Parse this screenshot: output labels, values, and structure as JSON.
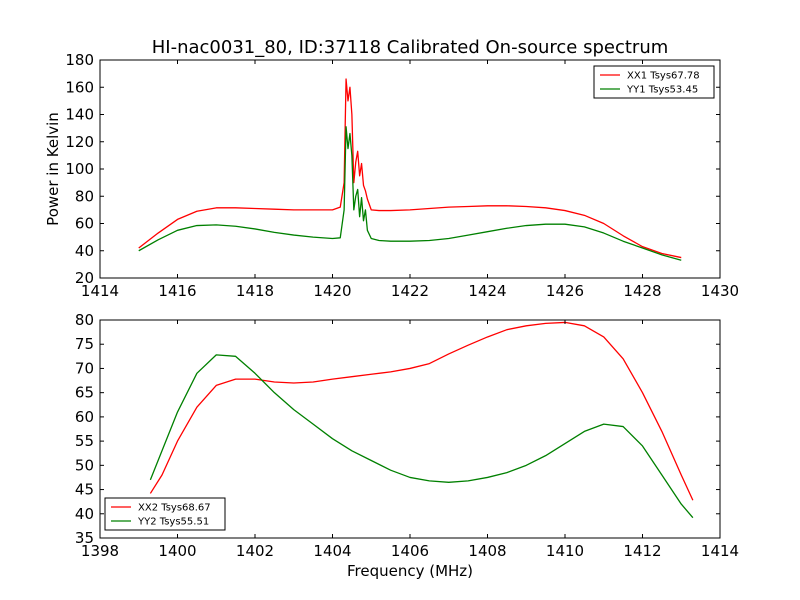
{
  "figure": {
    "title": "HI-nac0031_80, ID:37118 Calibrated On-source spectrum"
  },
  "chart_data": [
    {
      "type": "line",
      "title": "HI-nac0031_80, ID:37118 Calibrated On-source spectrum",
      "xlabel": "",
      "ylabel": "Power in Kelvin",
      "xlim": [
        1414,
        1430
      ],
      "ylim": [
        20,
        180
      ],
      "xticks": [
        1414,
        1416,
        1418,
        1420,
        1422,
        1424,
        1426,
        1428,
        1430
      ],
      "yticks": [
        20,
        40,
        60,
        80,
        100,
        120,
        140,
        160,
        180
      ],
      "grid": false,
      "legend_position": "top-right",
      "series": [
        {
          "name": "XX1 Tsys67.78",
          "color": "#ff0000",
          "x": [
            1415.0,
            1415.5,
            1416.0,
            1416.5,
            1417.0,
            1417.5,
            1418.0,
            1418.5,
            1419.0,
            1419.5,
            1420.0,
            1420.2,
            1420.3,
            1420.35,
            1420.4,
            1420.45,
            1420.5,
            1420.55,
            1420.6,
            1420.65,
            1420.7,
            1420.75,
            1420.8,
            1420.85,
            1420.9,
            1421.0,
            1421.2,
            1421.5,
            1422.0,
            1422.5,
            1423.0,
            1423.5,
            1424.0,
            1424.5,
            1425.0,
            1425.5,
            1426.0,
            1426.5,
            1427.0,
            1427.5,
            1428.0,
            1428.5,
            1429.0
          ],
          "values": [
            42,
            53,
            63,
            69,
            71.5,
            71.5,
            71,
            70.5,
            70,
            70,
            70,
            72,
            90,
            166,
            150,
            160,
            140,
            90,
            105,
            113,
            95,
            104,
            88,
            84,
            78,
            70,
            69.5,
            69.5,
            70,
            71,
            72,
            72.5,
            73,
            73,
            72.5,
            71.5,
            69.5,
            66,
            60,
            51,
            43,
            38,
            35
          ]
        },
        {
          "name": "YY1 Tsys53.45",
          "color": "#008000",
          "x": [
            1415.0,
            1415.5,
            1416.0,
            1416.5,
            1417.0,
            1417.5,
            1418.0,
            1418.5,
            1419.0,
            1419.5,
            1420.0,
            1420.2,
            1420.3,
            1420.35,
            1420.4,
            1420.45,
            1420.5,
            1420.55,
            1420.6,
            1420.65,
            1420.7,
            1420.75,
            1420.8,
            1420.85,
            1420.9,
            1421.0,
            1421.2,
            1421.5,
            1422.0,
            1422.5,
            1423.0,
            1423.5,
            1424.0,
            1424.5,
            1425.0,
            1425.5,
            1426.0,
            1426.5,
            1427.0,
            1427.5,
            1428.0,
            1428.5,
            1429.0
          ],
          "values": [
            40,
            48,
            55,
            58.5,
            59,
            58,
            56,
            53.5,
            51.5,
            50,
            49,
            49.5,
            70,
            131,
            115,
            126,
            110,
            70,
            80,
            85,
            65,
            79,
            62,
            70,
            55,
            49,
            47.5,
            47,
            47,
            47.5,
            49,
            51.5,
            54,
            56.5,
            58.5,
            59.5,
            59.5,
            57.5,
            53,
            47,
            42,
            37,
            33
          ]
        }
      ]
    },
    {
      "type": "line",
      "title": "",
      "xlabel": "Frequency (MHz)",
      "ylabel": "",
      "xlim": [
        1398,
        1414
      ],
      "ylim": [
        35,
        80
      ],
      "xticks": [
        1398,
        1400,
        1402,
        1404,
        1406,
        1408,
        1410,
        1412,
        1414
      ],
      "yticks": [
        35,
        40,
        45,
        50,
        55,
        60,
        65,
        70,
        75,
        80
      ],
      "grid": false,
      "legend_position": "bottom-left",
      "series": [
        {
          "name": "XX2 Tsys68.67",
          "color": "#ff0000",
          "x": [
            1399.3,
            1399.6,
            1400.0,
            1400.5,
            1401.0,
            1401.5,
            1402.0,
            1402.5,
            1403.0,
            1403.5,
            1404.0,
            1404.5,
            1405.0,
            1405.5,
            1406.0,
            1406.5,
            1407.0,
            1407.5,
            1408.0,
            1408.5,
            1409.0,
            1409.5,
            1410.0,
            1410.5,
            1411.0,
            1411.5,
            1412.0,
            1412.5,
            1413.0,
            1413.3
          ],
          "values": [
            44.2,
            48,
            55,
            62,
            66.5,
            67.8,
            67.8,
            67.2,
            67,
            67.2,
            67.8,
            68.3,
            68.8,
            69.3,
            70,
            71,
            73,
            74.8,
            76.5,
            78,
            78.8,
            79.3,
            79.5,
            78.8,
            76.5,
            72,
            65,
            57,
            48,
            42.8
          ]
        },
        {
          "name": "YY2 Tsys55.51",
          "color": "#008000",
          "x": [
            1399.3,
            1399.6,
            1400.0,
            1400.5,
            1401.0,
            1401.5,
            1402.0,
            1402.5,
            1403.0,
            1403.5,
            1404.0,
            1404.5,
            1405.0,
            1405.5,
            1406.0,
            1406.5,
            1407.0,
            1407.5,
            1408.0,
            1408.5,
            1409.0,
            1409.5,
            1410.0,
            1410.5,
            1411.0,
            1411.5,
            1412.0,
            1412.5,
            1413.0,
            1413.3
          ],
          "values": [
            47,
            53,
            61,
            69,
            72.8,
            72.5,
            69,
            65,
            61.5,
            58.5,
            55.5,
            53,
            51,
            49,
            47.5,
            46.8,
            46.5,
            46.8,
            47.5,
            48.5,
            50,
            52,
            54.5,
            57,
            58.5,
            58,
            54,
            48,
            42,
            39.2
          ]
        }
      ]
    }
  ]
}
